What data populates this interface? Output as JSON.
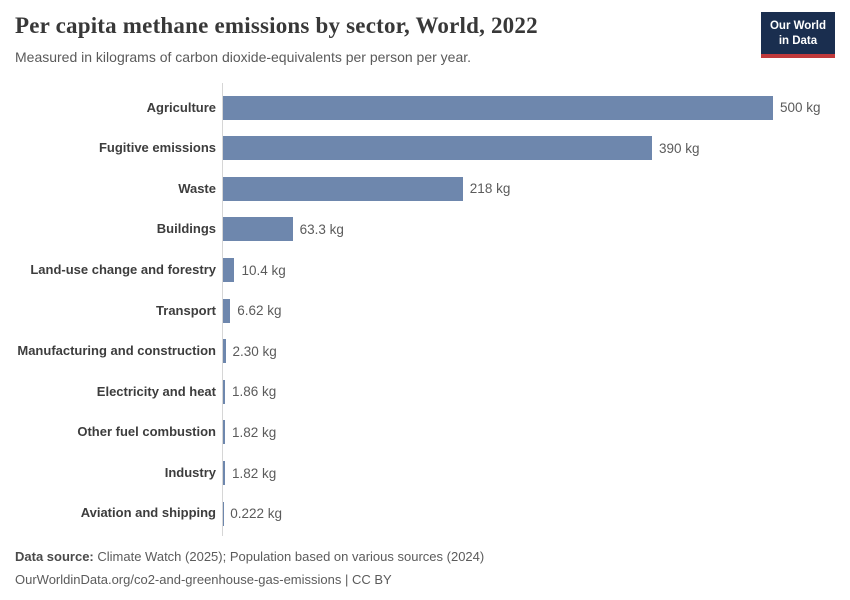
{
  "header": {
    "title": "Per capita methane emissions by sector, World, 2022",
    "subtitle": "Measured in kilograms of carbon dioxide-equivalents per person per year.",
    "logo": {
      "line1": "Our World",
      "line2": "in Data"
    }
  },
  "chart_data": {
    "type": "bar",
    "orientation": "horizontal",
    "title": "Per capita methane emissions by sector, World, 2022",
    "subtitle": "Measured in kilograms of carbon dioxide-equivalents per person per year.",
    "categories": [
      "Agriculture",
      "Fugitive emissions",
      "Waste",
      "Buildings",
      "Land-use change and forestry",
      "Transport",
      "Manufacturing and construction",
      "Electricity and heat",
      "Other fuel combustion",
      "Industry",
      "Aviation and shipping"
    ],
    "values": [
      500,
      390,
      218,
      63.3,
      10.4,
      6.62,
      2.3,
      1.86,
      1.82,
      1.82,
      0.222
    ],
    "value_labels": [
      "500 kg",
      "390 kg",
      "218 kg",
      "63.3 kg",
      "10.4 kg",
      "6.62 kg",
      "2.30 kg",
      "1.86 kg",
      "1.82 kg",
      "1.82 kg",
      "0.222 kg"
    ],
    "unit": "kg",
    "xlim": [
      0,
      500
    ],
    "grid": false,
    "legend": "none",
    "bar_color": "#6e87ad",
    "axis_line_color": "#d6d6d6"
  },
  "footer": {
    "datasource_label": "Data source:",
    "datasource_text": "Climate Watch (2025); Population based on various sources (2024)",
    "url_line": "OurWorldinData.org/co2-and-greenhouse-gas-emissions | CC BY"
  },
  "colors": {
    "bar": "#6e87ad",
    "logo_navy": "#1a2e4f",
    "logo_red": "#c0393b",
    "title_text": "#383838",
    "muted_text": "#5b5b5b"
  }
}
